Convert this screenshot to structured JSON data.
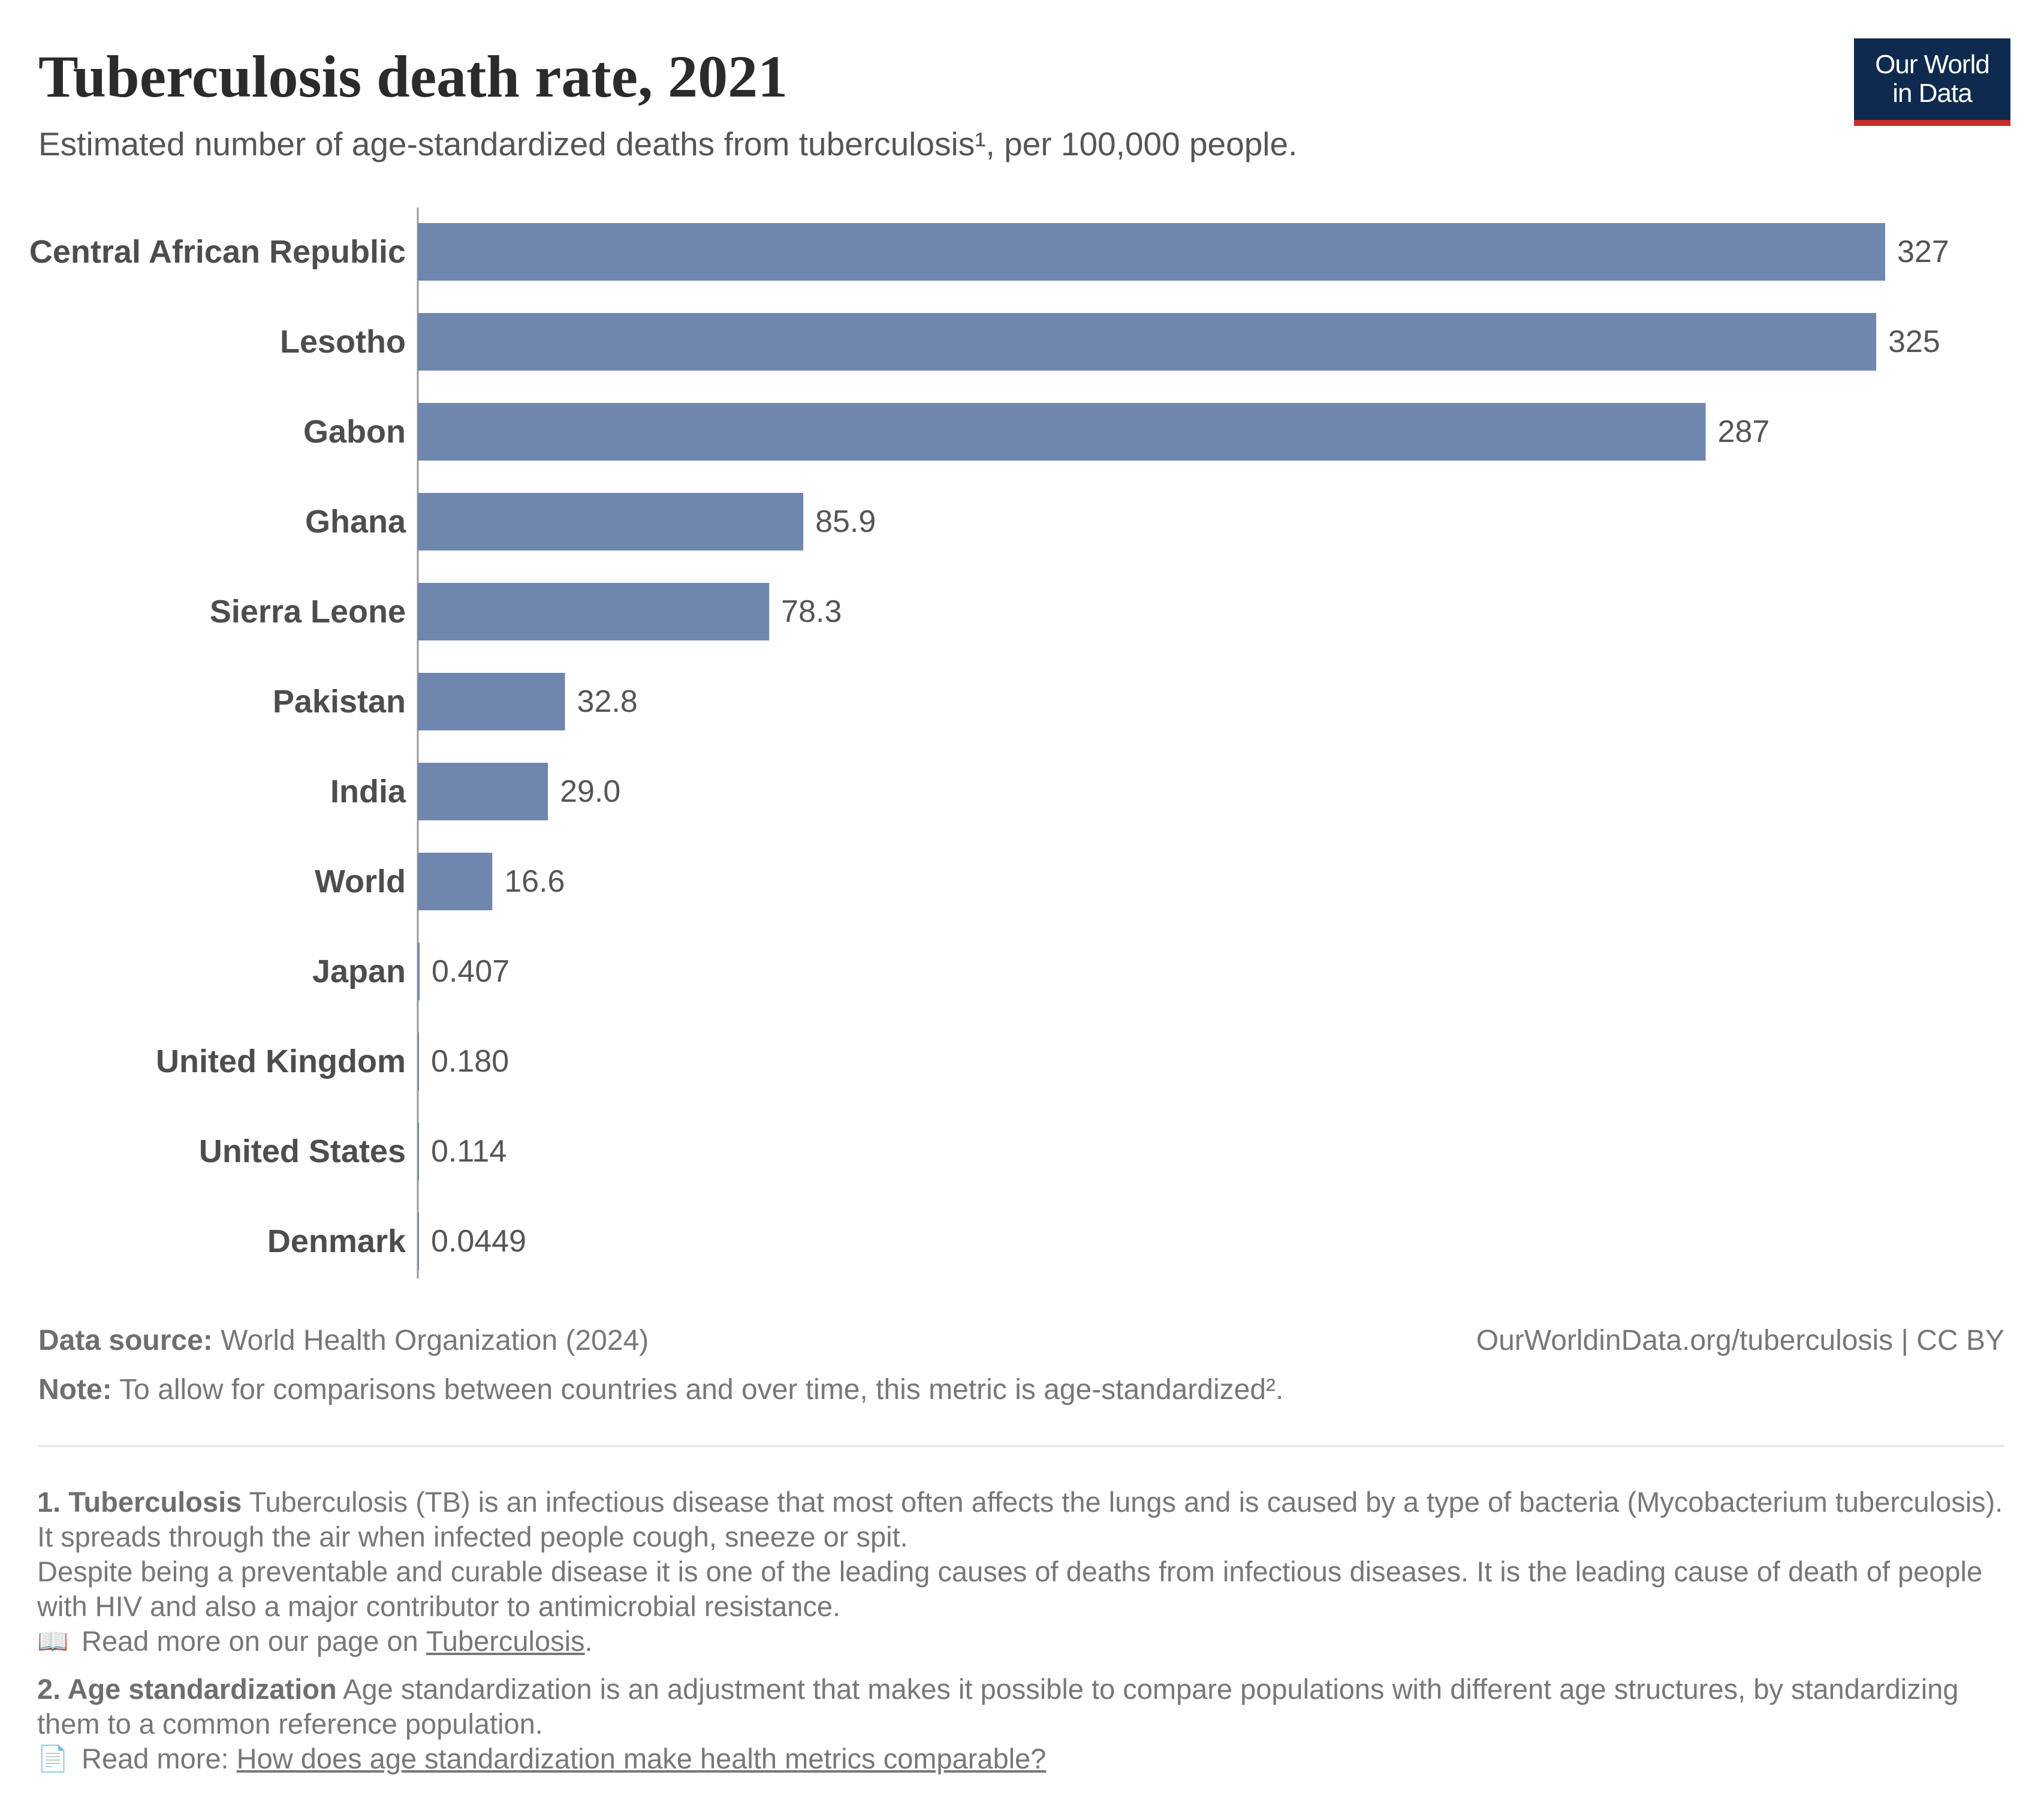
{
  "header": {
    "title": "Tuberculosis death rate, 2021",
    "subtitle": "Estimated number of age-standardized deaths from tuberculosis¹, per 100,000 people."
  },
  "logo": {
    "line1": "Our World",
    "line2": "in Data"
  },
  "chart_data": {
    "type": "bar",
    "orientation": "horizontal",
    "title": "Tuberculosis death rate, 2021",
    "subtitle": "Estimated number of age-standardized deaths from tuberculosis¹, per 100,000 people.",
    "categories": [
      "Central African Republic",
      "Lesotho",
      "Gabon",
      "Ghana",
      "Sierra Leone",
      "Pakistan",
      "India",
      "World",
      "Japan",
      "United Kingdom",
      "United States",
      "Denmark"
    ],
    "values": [
      327,
      325,
      287,
      85.9,
      78.3,
      32.8,
      29.0,
      16.6,
      0.407,
      0.18,
      0.114,
      0.0449
    ],
    "value_labels": [
      "327",
      "325",
      "287",
      "85.9",
      "78.3",
      "32.8",
      "29.0",
      "16.6",
      "0.407",
      "0.180",
      "0.114",
      "0.0449"
    ],
    "xlim": [
      0,
      327
    ],
    "grid": false,
    "bar_color": "#6f86ae"
  },
  "footer": {
    "source_label": "Data source:",
    "source_text": " World Health Organization (2024)",
    "license": "OurWorldinData.org/tuberculosis | CC BY",
    "note_label": "Note:",
    "note_text": " To allow for comparisons between countries and over time, this metric is age-standardized²."
  },
  "footnotes": {
    "fn1_label": "1. Tuberculosis",
    "fn1_text": " Tuberculosis (TB) is an infectious disease that most often affects the lungs and is caused by a type of bacteria (Mycobacterium tuberculosis). It spreads through the air when infected people cough, sneeze or spit.",
    "fn1_text2": "Despite being a preventable and curable disease it is one of the leading causes of deaths from infectious diseases. It is the leading cause of death of people with HIV and also a major contributor to antimicrobial resistance.",
    "fn1_readmore": "Read more on our page on ",
    "fn1_link": "Tuberculosis",
    "fn1_after": ".",
    "fn1_icon": "book-icon",
    "fn2_label": "2. Age standardization",
    "fn2_text": " Age standardization is an adjustment that makes it possible to compare populations with different age structures, by standardizing them to a common reference population.",
    "fn2_readmore": "Read more: ",
    "fn2_link": "How does age standardization make health metrics comparable?",
    "fn2_icon": "document-icon"
  }
}
